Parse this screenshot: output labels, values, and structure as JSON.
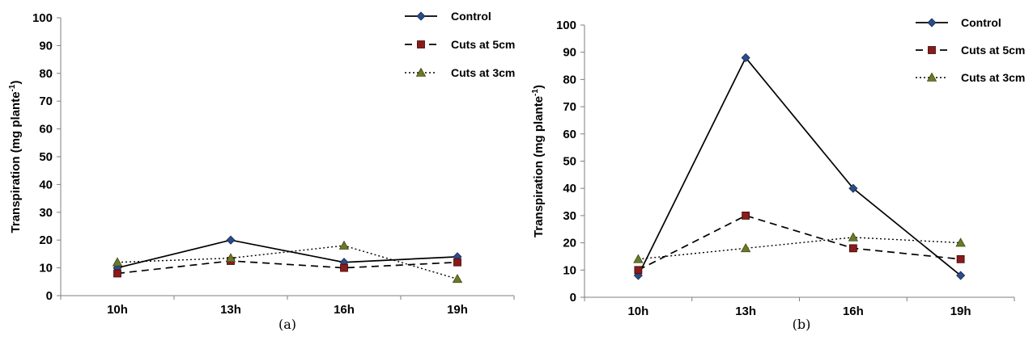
{
  "chart_data": [
    {
      "type": "line",
      "panel_label": "(a)",
      "ylabel": "Transpiration (mg plante",
      "ylabel_superscript": "-1",
      "ylabel_suffix": ")",
      "xlabel": "",
      "categories": [
        "10h",
        "13h",
        "16h",
        "19h"
      ],
      "ylim": [
        0,
        100
      ],
      "yticks": [
        0,
        10,
        20,
        30,
        40,
        50,
        60,
        70,
        80,
        90,
        100
      ],
      "grid": false,
      "legend_position": "top-right",
      "series": [
        {
          "name": "Control",
          "values": [
            10,
            20,
            12,
            14
          ],
          "line_style": "solid",
          "marker": "diamond",
          "marker_color": "#2b4c8c"
        },
        {
          "name": "Cuts at 5cm",
          "values": [
            8,
            12.5,
            10,
            12
          ],
          "line_style": "dashed",
          "marker": "square",
          "marker_color": "#8b1a1a"
        },
        {
          "name": "Cuts at 3cm",
          "values": [
            12,
            13.5,
            18,
            6
          ],
          "line_style": "dotted",
          "marker": "triangle",
          "marker_color": "#6b7a2a"
        }
      ]
    },
    {
      "type": "line",
      "panel_label": "(b)",
      "ylabel": "Transpiration (mg plante",
      "ylabel_superscript": "-1",
      "ylabel_suffix": ")",
      "xlabel": "",
      "categories": [
        "10h",
        "13h",
        "16h",
        "19h"
      ],
      "ylim": [
        0,
        100
      ],
      "yticks": [
        0,
        10,
        20,
        30,
        40,
        50,
        60,
        70,
        80,
        90,
        100
      ],
      "grid": false,
      "legend_position": "top-right",
      "series": [
        {
          "name": "Control",
          "values": [
            8,
            88,
            40,
            8
          ],
          "line_style": "solid",
          "marker": "diamond",
          "marker_color": "#2b4c8c"
        },
        {
          "name": "Cuts at 5cm",
          "values": [
            10,
            30,
            18,
            14
          ],
          "line_style": "dashed",
          "marker": "square",
          "marker_color": "#8b1a1a"
        },
        {
          "name": "Cuts at 3cm",
          "values": [
            14,
            18,
            22,
            20
          ],
          "line_style": "dotted",
          "marker": "triangle",
          "marker_color": "#6b7a2a"
        }
      ]
    }
  ]
}
